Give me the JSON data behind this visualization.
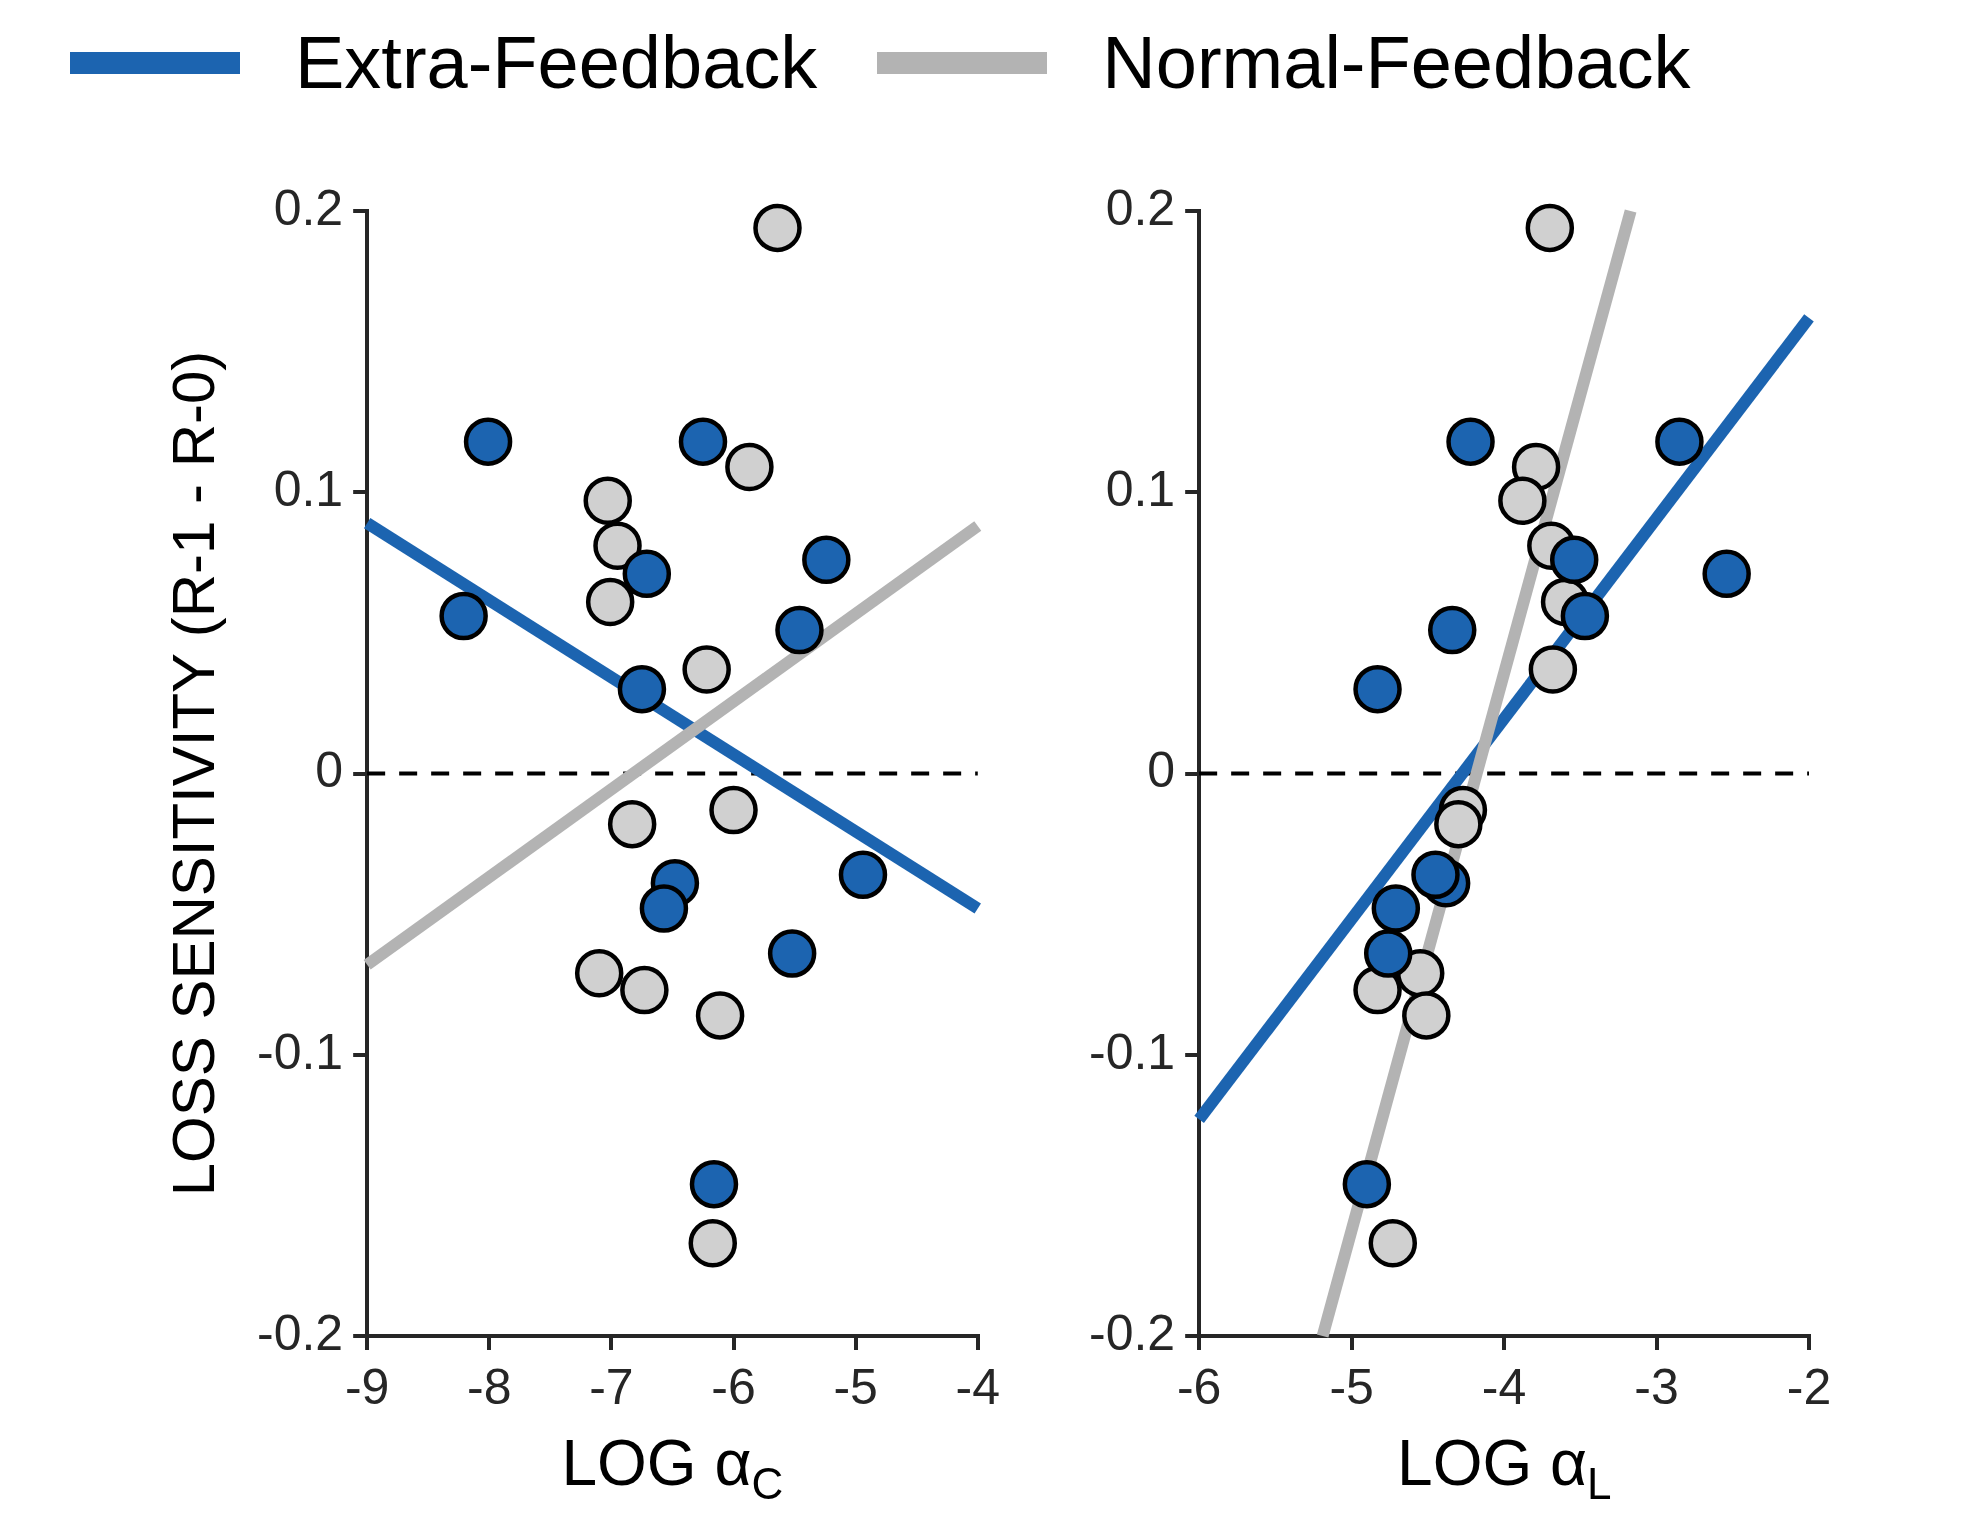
{
  "chart_data": [
    {
      "type": "scatter",
      "ylabel": "LOSS SENSITIVITY (R-1 - R-0)",
      "xlabel": "LOG α$_{C}$",
      "xlim": [
        -9,
        -4
      ],
      "xticks": [
        -9,
        -8,
        -7,
        -6,
        -5,
        -4
      ],
      "ylim": [
        -0.2,
        0.2
      ],
      "yticks": [
        -0.2,
        -0.1,
        0,
        0.1,
        0.2
      ],
      "grid": false,
      "legend": "top",
      "marker": "circle",
      "ref_lines": [
        {
          "axis": "y",
          "value": 0,
          "color": "#000000",
          "line_style": "dashed"
        }
      ],
      "series": [
        {
          "type": "line",
          "marker": "none",
          "name": "Extra-Feedback",
          "color": "#1c64b0",
          "x": [
            -9,
            -4
          ],
          "values": [
            0.089,
            -0.048
          ]
        },
        {
          "type": "line",
          "marker": "none",
          "name": "Normal-Feedback",
          "color": "#b3b3b3",
          "x": [
            -9,
            -4
          ],
          "values": [
            -0.068,
            0.088
          ]
        },
        {
          "type": "scatter",
          "color": "#d0d0d0",
          "x": [
            -5.64,
            -5.87,
            -7.03,
            -6.95,
            -7.01,
            -6.22,
            -6.83,
            -6.0,
            -7.1,
            -6.73,
            -6.11,
            -6.17
          ],
          "values": [
            0.194,
            0.109,
            0.097,
            0.081,
            0.061,
            0.037,
            -0.018,
            -0.013,
            -0.071,
            -0.077,
            -0.086,
            -0.167
          ]
        },
        {
          "type": "scatter",
          "color": "#1c64b0",
          "x": [
            -8.01,
            -8.21,
            -6.25,
            -6.71,
            -5.24,
            -5.46,
            -6.75,
            -6.48,
            -6.57,
            -4.94,
            -5.52,
            -6.16
          ],
          "values": [
            0.118,
            0.056,
            0.118,
            0.071,
            0.076,
            0.051,
            0.03,
            -0.039,
            -0.048,
            -0.036,
            -0.064,
            -0.146
          ]
        }
      ]
    },
    {
      "type": "scatter",
      "xlabel": "LOG α$_{L}$",
      "xlim": [
        -6,
        -2
      ],
      "xticks": [
        -6,
        -5,
        -4,
        -3,
        -2
      ],
      "ylim": [
        -0.2,
        0.2
      ],
      "yticks": [
        -0.2,
        -0.1,
        0,
        0.1,
        0.2
      ],
      "grid": false,
      "marker": "circle",
      "ref_lines": [
        {
          "axis": "y",
          "value": 0,
          "color": "#000000",
          "line_style": "dashed"
        }
      ],
      "series": [
        {
          "type": "line",
          "marker": "none",
          "color": "#1c64b0",
          "x": [
            -6,
            -2
          ],
          "values": [
            -0.123,
            0.162
          ]
        },
        {
          "type": "line",
          "marker": "none",
          "color": "#b3b3b3",
          "x": [
            -5.19,
            -3.17
          ],
          "values": [
            -0.2,
            0.2
          ]
        },
        {
          "type": "scatter",
          "color": "#d0d0d0",
          "x": [
            -3.7,
            -3.79,
            -3.88,
            -3.69,
            -3.6,
            -3.68,
            -4.27,
            -4.3,
            -4.55,
            -4.83,
            -4.51,
            -4.73
          ],
          "values": [
            0.194,
            0.109,
            0.097,
            0.081,
            0.061,
            0.037,
            -0.013,
            -0.018,
            -0.071,
            -0.077,
            -0.086,
            -0.167
          ]
        },
        {
          "type": "scatter",
          "color": "#1c64b0",
          "x": [
            -4.22,
            -2.85,
            -2.54,
            -3.54,
            -3.47,
            -4.34,
            -4.83,
            -4.38,
            -4.45,
            -4.71,
            -4.76,
            -4.9
          ],
          "values": [
            0.118,
            0.118,
            0.071,
            0.076,
            0.056,
            0.051,
            0.03,
            -0.039,
            -0.036,
            -0.048,
            -0.064,
            -0.146
          ]
        }
      ]
    }
  ]
}
